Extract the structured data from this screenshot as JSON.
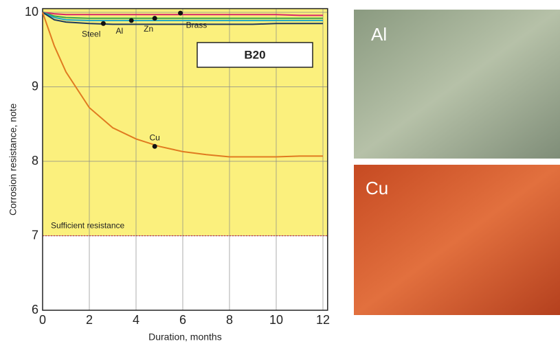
{
  "chart_data": {
    "type": "line",
    "x_label": "Duration, months",
    "y_label": "Corrosion resistance, note",
    "box_label": "B20",
    "threshold": {
      "value": 7,
      "label": "Sufficient resistance",
      "color": "#c0304a",
      "fill": "#fbf07d"
    },
    "xlim": [
      0,
      12.2
    ],
    "ylim": [
      6,
      10.05
    ],
    "xticks": [
      0,
      2,
      4,
      6,
      8,
      10,
      12
    ],
    "yticks": [
      6,
      7,
      8,
      9,
      10
    ],
    "grid": true,
    "x": [
      0,
      0.5,
      1,
      2,
      3,
      4,
      5,
      6,
      7,
      8,
      9,
      10,
      11,
      12
    ],
    "series": [
      {
        "name": "Brass",
        "color": "#d8246a",
        "values": [
          10,
          9.98,
          9.97,
          9.97,
          9.97,
          9.97,
          9.97,
          9.97,
          9.97,
          9.97,
          9.97,
          9.97,
          9.96,
          9.96
        ],
        "marker": [
          5.9,
          9.99
        ]
      },
      {
        "name": "Zn",
        "color": "#3aa34a",
        "values": [
          10,
          9.95,
          9.93,
          9.92,
          9.92,
          9.92,
          9.92,
          9.92,
          9.92,
          9.92,
          9.92,
          9.92,
          9.92,
          9.92
        ],
        "marker": [
          4.8,
          9.92
        ]
      },
      {
        "name": "Al",
        "color": "#1aa6c8",
        "values": [
          10,
          9.93,
          9.9,
          9.89,
          9.89,
          9.89,
          9.89,
          9.89,
          9.89,
          9.89,
          9.89,
          9.89,
          9.89,
          9.89
        ],
        "marker": [
          3.8,
          9.89
        ]
      },
      {
        "name": "Steel",
        "color": "#1d3a5c",
        "values": [
          10,
          9.9,
          9.87,
          9.85,
          9.84,
          9.84,
          9.84,
          9.84,
          9.84,
          9.84,
          9.84,
          9.85,
          9.85,
          9.85
        ],
        "marker": [
          2.6,
          9.85
        ]
      },
      {
        "name": "Cu",
        "color": "#e07a20",
        "values": [
          10,
          9.55,
          9.2,
          8.72,
          8.45,
          8.3,
          8.2,
          8.13,
          8.09,
          8.06,
          8.06,
          8.06,
          8.07,
          8.07
        ],
        "marker": [
          4.8,
          8.2
        ]
      }
    ]
  },
  "photos": [
    {
      "label": "Al"
    },
    {
      "label": "Cu"
    }
  ]
}
